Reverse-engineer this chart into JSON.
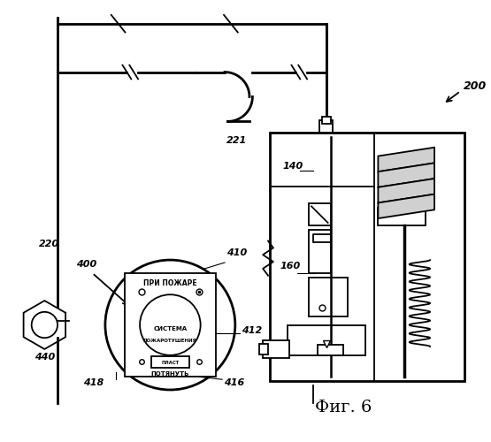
{
  "title": "Фиг. 6",
  "bg_color": "#ffffff",
  "line_color": "#000000",
  "label_220": "220",
  "label_221": "221",
  "label_200": "200",
  "label_140": "140",
  "label_160": "160",
  "label_400": "400",
  "label_410": "410",
  "label_412": "412",
  "label_416": "416",
  "label_418": "418",
  "label_440": "440",
  "text_pri_pozhare": "ПРИ ПОЖАРЕ",
  "text_sistema": "СИСТЕМА",
  "text_pozharotusheniya": "ПОЖАРОТУШЕНИЯ",
  "text_potyanut": "ПОТЯНУТЬ",
  "text_plast": "ПЛАСТ"
}
